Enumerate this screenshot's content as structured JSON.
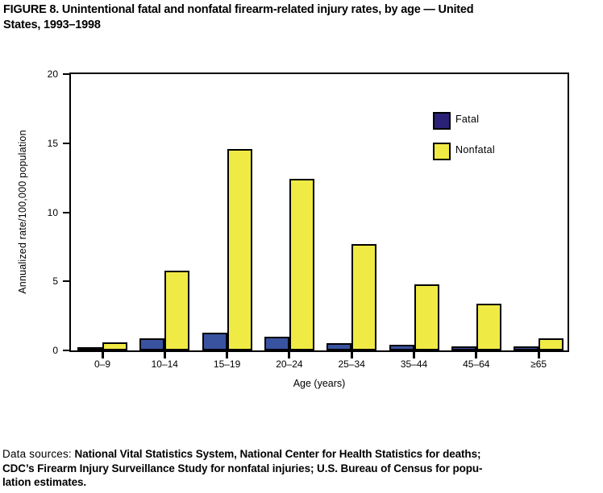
{
  "figure": {
    "title_line1": "FIGURE 8. Unintentional fatal and nonfatal firearm-related injury rates, by age — United",
    "title_line2": "States, 1993–1998"
  },
  "chart_data": {
    "type": "bar",
    "title": "FIGURE 8. Unintentional fatal and nonfatal firearm-related injury rates, by age — United States, 1993–1998",
    "categories": [
      "0–9",
      "10–14",
      "15–19",
      "20–24",
      "25–34",
      "35–44",
      "45–64",
      "≥65"
    ],
    "series": [
      {
        "name": "Fatal",
        "color": "#3a53a1",
        "legend_color": "#2b2177",
        "values": [
          0.1,
          0.9,
          1.3,
          1.0,
          0.5,
          0.4,
          0.3,
          0.3
        ]
      },
      {
        "name": "Nonfatal",
        "color": "#f0ea45",
        "legend_color": "#f0ea45",
        "values": [
          0.6,
          5.8,
          14.6,
          12.4,
          7.7,
          4.8,
          3.4,
          0.9
        ]
      }
    ],
    "xlabel": "Age (years)",
    "ylabel": "Annualized rate/100,000 population",
    "ylim": [
      0,
      20
    ],
    "y_ticks": [
      0,
      5,
      10,
      15,
      20
    ],
    "grid": false,
    "legend_position": "inside upper right",
    "axis_color": "#000000"
  },
  "footer": {
    "prefix": "Data sources:",
    "line1_rest": " National Vital Statistics System, National Center for Health Statistics for deaths;",
    "line2": "CDC’s Firearm Injury Surveillance Study for nonfatal injuries; U.S. Bureau of Census for popu-",
    "line3": "lation estimates."
  }
}
